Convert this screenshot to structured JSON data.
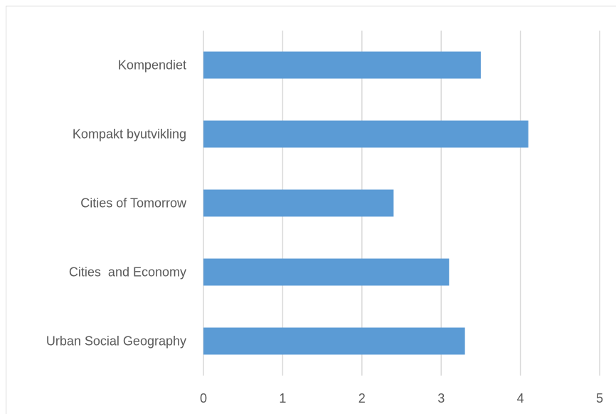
{
  "chart_data": {
    "type": "bar",
    "orientation": "horizontal",
    "categories": [
      "Kompendiet",
      "Kompakt byutvikling",
      "Cities of Tomorrow",
      "Cities  and Economy",
      "Urban Social Geography"
    ],
    "values": [
      3.5,
      4.1,
      2.4,
      3.1,
      3.3
    ],
    "xlim": [
      0,
      5
    ],
    "xticks": [
      "0",
      "1",
      "2",
      "3",
      "4",
      "5"
    ],
    "grid": "vertical",
    "legend": "none",
    "title": "",
    "xlabel": "",
    "ylabel": "",
    "colors": {
      "bar": "#5b9bd5",
      "grid": "#d9d9d9",
      "text": "#595959"
    }
  }
}
